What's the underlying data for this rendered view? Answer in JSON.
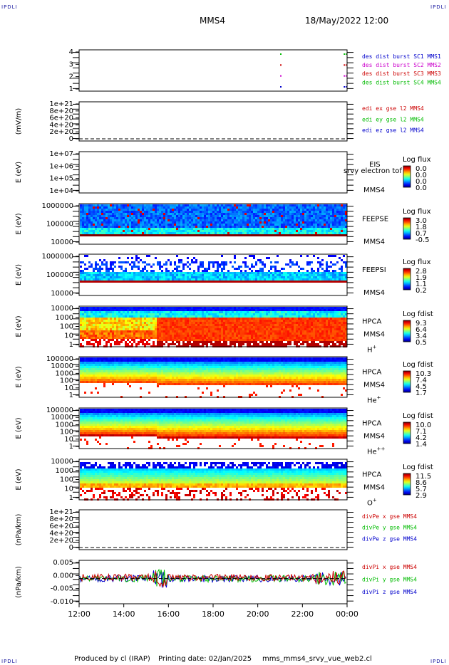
{
  "corner_label": "IPDLI",
  "header": {
    "spacecraft": "MMS4",
    "date_time": "18/May/2022 12:00"
  },
  "footer": {
    "produced_by": "Produced by cl (IRAP)",
    "printing_date": "Printing date: 02/Jan/2025",
    "script_name": "mms_mms4_srvy_vue_web2.cl"
  },
  "chart_data": {
    "type": "multi-panel time series",
    "x": {
      "ticks": [
        "12:00",
        "14:00",
        "16:00",
        "18:00",
        "20:00",
        "22:00",
        "00:00"
      ],
      "range_hours": [
        12,
        24
      ]
    },
    "panels": [
      {
        "id": "burst",
        "ylabel": "",
        "yticks": [
          "4",
          "3",
          "2",
          "1"
        ],
        "legend": [
          {
            "text": "des dist burst SC1 MMS1",
            "color": "#0000cc"
          },
          {
            "text": "des dist burst SC2 MMS2",
            "color": "#cc00cc"
          },
          {
            "text": "des dist burst SC3 MMS3",
            "color": "#cc0000"
          },
          {
            "text": "des dist burst SC4 MMS4",
            "color": "#00bb00"
          }
        ],
        "burst_times_hours": [
          21.0,
          23.85,
          23.95
        ]
      },
      {
        "id": "edi",
        "ylabel": "(mV/m)",
        "yticks": [
          "1e+21",
          "8e+20",
          "6e+20",
          "4e+20",
          "2e+20",
          "0"
        ],
        "legend": [
          {
            "text": "edi ex gse l2 MMS4",
            "color": "#cc0000"
          },
          {
            "text": "edi ey gse l2 MMS4",
            "color": "#00bb00"
          },
          {
            "text": "edi ez gse l2 MMS4",
            "color": "#0000cc"
          }
        ]
      },
      {
        "id": "eis",
        "ylabel": "E (eV)",
        "yticks": [
          "1e+07",
          "1e+06",
          "1e+05",
          "1e+04"
        ],
        "labels": [
          "EIS",
          "srvy electron tof",
          "MMS4"
        ],
        "colorbar": {
          "title": "Log flux",
          "ticks": [
            "0.0",
            "0.0",
            "0.0",
            "0.0"
          ]
        }
      },
      {
        "id": "feepse",
        "ylabel": "E (eV)",
        "yticks": [
          "1000000",
          "100000",
          "10000"
        ],
        "labels": [
          "FEEPSE",
          "MMS4"
        ],
        "colorbar": {
          "title": "Log flux",
          "ticks": [
            "3.0",
            "1.8",
            "0.7",
            "-0.5"
          ]
        }
      },
      {
        "id": "feepsi",
        "ylabel": "E (eV)",
        "yticks": [
          "1000000",
          "100000",
          "10000"
        ],
        "labels": [
          "FEEPSI",
          "MMS4"
        ],
        "colorbar": {
          "title": "Log flux",
          "ticks": [
            "2.8",
            "1.9",
            "1.1",
            "0.2"
          ]
        }
      },
      {
        "id": "hpca_h",
        "ylabel": "E (eV)",
        "yticks": [
          "10000",
          "1000",
          "100",
          "10",
          "1"
        ],
        "labels": [
          "HPCA",
          "MMS4"
        ],
        "species": "H",
        "charge": "+",
        "colorbar": {
          "title": "Log fdist",
          "ticks": [
            "9.3",
            "6.4",
            "3.4",
            "0.5"
          ]
        }
      },
      {
        "id": "hpca_he",
        "ylabel": "E (eV)",
        "yticks": [
          "100000",
          "10000",
          "1000",
          "100",
          "10",
          "1"
        ],
        "labels": [
          "HPCA",
          "MMS4"
        ],
        "species": "He",
        "charge": "+",
        "colorbar": {
          "title": "Log fdist",
          "ticks": [
            "10.3",
            "7.4",
            "4.5",
            "1.7"
          ]
        }
      },
      {
        "id": "hpca_hepp",
        "ylabel": "E (eV)",
        "yticks": [
          "100000",
          "10000",
          "1000",
          "100",
          "10",
          "1"
        ],
        "labels": [
          "HPCA",
          "MMS4"
        ],
        "species": "He",
        "charge": "++",
        "colorbar": {
          "title": "Log fdist",
          "ticks": [
            "10.0",
            "7.1",
            "4.2",
            "1.4"
          ]
        }
      },
      {
        "id": "hpca_o",
        "ylabel": "E (eV)",
        "yticks": [
          "10000",
          "1000",
          "100",
          "10",
          "1"
        ],
        "labels": [
          "HPCA",
          "MMS4"
        ],
        "species": "O",
        "charge": "+",
        "colorbar": {
          "title": "Log fdist",
          "ticks": [
            "11.5",
            "8.6",
            "5.7",
            "2.9"
          ]
        }
      },
      {
        "id": "divpe",
        "ylabel": "(nPa/km)",
        "yticks": [
          "1e+21",
          "8e+20",
          "6e+20",
          "4e+20",
          "2e+20",
          "0"
        ],
        "legend": [
          {
            "text": "divPe x gse MMS4",
            "color": "#cc0000"
          },
          {
            "text": "divPe y gse MMS4",
            "color": "#00bb00"
          },
          {
            "text": "divPe z gse MMS4",
            "color": "#0000cc"
          }
        ]
      },
      {
        "id": "divpi",
        "ylabel": "(nPa/km)",
        "yticks": [
          "0.005",
          "0.000",
          "-0.005",
          "-0.010"
        ],
        "ylim": [
          -0.011,
          0.008
        ],
        "legend": [
          {
            "text": "divPi x gse MMS4",
            "color": "#cc0000"
          },
          {
            "text": "divPi y gse MMS4",
            "color": "#00bb00"
          },
          {
            "text": "divPi z gse MMS4",
            "color": "#0000cc"
          }
        ]
      }
    ]
  }
}
